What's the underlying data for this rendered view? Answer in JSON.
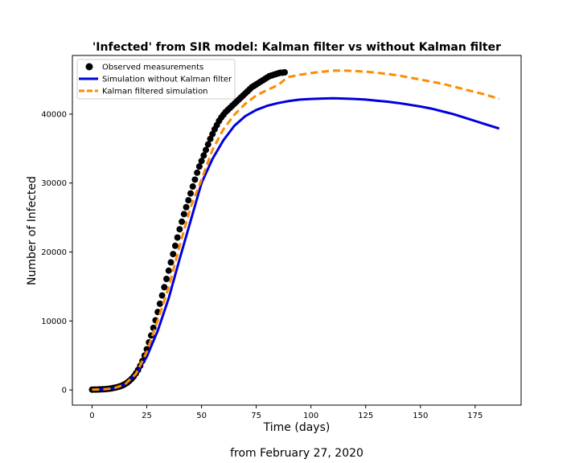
{
  "chart_data": {
    "type": "line",
    "title": "'Infected' from SIR model: Kalman filter vs without Kalman filter",
    "xlabel": "Time (days)",
    "ylabel": "Number of Infected",
    "caption": "from February 27, 2020",
    "xlim": [
      -9,
      196
    ],
    "ylim": [
      -2200,
      48500
    ],
    "xticks": [
      0,
      25,
      50,
      75,
      100,
      125,
      150,
      175
    ],
    "yticks": [
      0,
      10000,
      20000,
      30000,
      40000
    ],
    "grid": false,
    "legend_position": "top-left",
    "colors": {
      "observed": "#000000",
      "without_kalman": "#0000dd",
      "kalman": "#ff8c00"
    },
    "observed": {
      "name": "Observed measurements",
      "x": [
        0,
        1,
        2,
        3,
        4,
        5,
        6,
        7,
        8,
        9,
        10,
        11,
        12,
        13,
        14,
        15,
        16,
        17,
        18,
        19,
        20,
        21,
        22,
        23,
        24,
        25,
        26,
        27,
        28,
        29,
        30,
        31,
        32,
        33,
        34,
        35,
        36,
        37,
        38,
        39,
        40,
        41,
        42,
        43,
        44,
        45,
        46,
        47,
        48,
        49,
        50,
        51,
        52,
        53,
        54,
        55,
        56,
        57,
        58,
        59,
        60,
        61,
        62,
        63,
        64,
        65,
        66,
        67,
        68,
        69,
        70,
        71,
        72,
        73,
        74,
        75,
        76,
        77,
        78,
        79,
        80,
        81,
        82,
        83,
        84,
        85,
        86,
        87,
        88
      ],
      "y": [
        50,
        55,
        60,
        70,
        85,
        100,
        120,
        150,
        190,
        240,
        300,
        370,
        450,
        550,
        680,
        850,
        1050,
        1300,
        1600,
        1950,
        2400,
        2900,
        3500,
        4200,
        5000,
        5900,
        6900,
        7900,
        9000,
        10100,
        11300,
        12500,
        13700,
        14900,
        16100,
        17300,
        18500,
        19700,
        20900,
        22100,
        23300,
        24400,
        25500,
        26500,
        27500,
        28500,
        29500,
        30500,
        31500,
        32400,
        33200,
        34000,
        34800,
        35600,
        36400,
        37100,
        37800,
        38400,
        39000,
        39500,
        39900,
        40300,
        40600,
        40900,
        41200,
        41500,
        41800,
        42100,
        42400,
        42700,
        43000,
        43300,
        43600,
        43900,
        44100,
        44300,
        44500,
        44700,
        44900,
        45100,
        45300,
        45500,
        45600,
        45700,
        45800,
        45900,
        46000,
        46000,
        46050
      ]
    },
    "without_kalman": {
      "name": "Simulation without Kalman filter",
      "x": [
        0,
        5,
        10,
        15,
        20,
        25,
        30,
        35,
        40,
        45,
        50,
        55,
        60,
        65,
        70,
        75,
        80,
        85,
        90,
        95,
        100,
        105,
        110,
        115,
        120,
        125,
        130,
        135,
        140,
        145,
        150,
        155,
        160,
        165,
        170,
        175,
        180,
        186
      ],
      "y": [
        50,
        90,
        250,
        800,
        2300,
        4800,
        8600,
        13300,
        19000,
        24500,
        30000,
        33500,
        36200,
        38300,
        39700,
        40600,
        41200,
        41600,
        41900,
        42100,
        42200,
        42250,
        42300,
        42250,
        42200,
        42100,
        41950,
        41800,
        41600,
        41350,
        41100,
        40800,
        40400,
        40000,
        39500,
        39000,
        38500,
        37900
      ]
    },
    "kalman": {
      "name": "Kalman filtered simulation",
      "x": [
        0,
        5,
        10,
        15,
        20,
        25,
        30,
        35,
        40,
        45,
        50,
        55,
        60,
        65,
        70,
        75,
        80,
        85,
        88,
        90,
        95,
        100,
        105,
        110,
        115,
        120,
        125,
        130,
        135,
        140,
        145,
        150,
        155,
        160,
        165,
        170,
        175,
        180,
        186
      ],
      "y": [
        50,
        90,
        250,
        800,
        2300,
        5500,
        10100,
        14900,
        20900,
        26500,
        30500,
        34800,
        37800,
        39900,
        41500,
        42700,
        43500,
        44200,
        45000,
        45400,
        45700,
        45950,
        46150,
        46300,
        46300,
        46250,
        46150,
        46000,
        45800,
        45600,
        45300,
        45000,
        44700,
        44400,
        44000,
        43600,
        43200,
        42800,
        42200
      ]
    }
  }
}
